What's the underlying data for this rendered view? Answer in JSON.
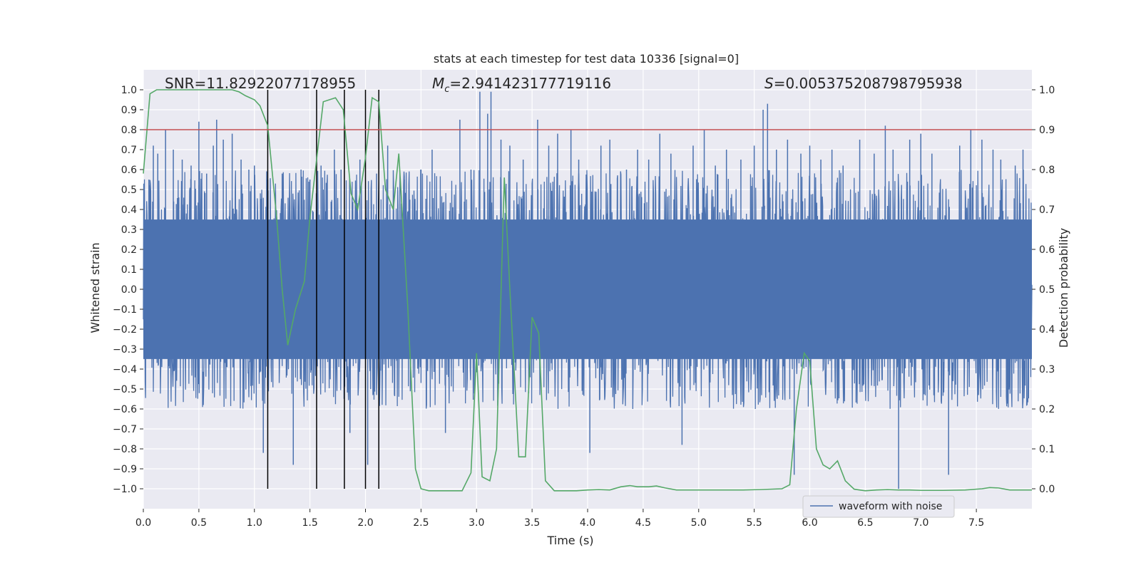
{
  "chart_data": {
    "type": "line",
    "title": "stats at each timestep for test data 10336 [signal=0]",
    "xlabel": "Time (s)",
    "ylabel": "Whitened strain",
    "y2label": "Detection probability",
    "xlim": [
      0,
      8
    ],
    "ylim": [
      -1.1,
      1.1
    ],
    "y2lim": [
      -0.05,
      1.05
    ],
    "xticks": [
      0.0,
      0.5,
      1.0,
      1.5,
      2.0,
      2.5,
      3.0,
      3.5,
      4.0,
      4.5,
      5.0,
      5.5,
      6.0,
      6.5,
      7.0,
      7.5
    ],
    "xtick_labels": [
      "0.0",
      "0.5",
      "1.0",
      "1.5",
      "2.0",
      "2.5",
      "3.0",
      "3.5",
      "4.0",
      "4.5",
      "5.0",
      "5.5",
      "6.0",
      "6.5",
      "7.0",
      "7.5"
    ],
    "yticks": [
      1.0,
      0.9,
      0.8,
      0.7,
      0.6,
      0.5,
      0.4,
      0.3,
      0.2,
      0.1,
      0.0,
      -0.1,
      -0.2,
      -0.3,
      -0.4,
      -0.5,
      -0.6,
      -0.7,
      -0.8,
      -0.9,
      -1.0
    ],
    "ytick_labels": [
      "1.0",
      "0.9",
      "0.8",
      "0.7",
      "0.6",
      "0.5",
      "0.4",
      "0.3",
      "0.2",
      "0.1",
      "0.0",
      "−0.1",
      "−0.2",
      "−0.3",
      "−0.4",
      "−0.5",
      "−0.6",
      "−0.7",
      "−0.8",
      "−0.9",
      "−1.0"
    ],
    "y2ticks": [
      1.0,
      0.9,
      0.8,
      0.7,
      0.6,
      0.5,
      0.4,
      0.3,
      0.2,
      0.1,
      0.0
    ],
    "y2tick_labels": [
      "1.0",
      "0.9",
      "0.8",
      "0.7",
      "0.6",
      "0.5",
      "0.4",
      "0.3",
      "0.2",
      "0.1",
      "0.0"
    ],
    "annotations": {
      "snr": "SNR=11.82922077178955",
      "mc_symbol": "M",
      "mc_sub": "c",
      "mc_value": "=2.941423177719116",
      "s_symbol": "S",
      "s_value": "=0.005375208798795938"
    },
    "threshold": {
      "value": 0.9,
      "axis": "y2",
      "color": "#c44e52"
    },
    "vertical_lines": {
      "x": [
        1.12,
        1.56,
        1.81,
        2.0,
        2.12
      ],
      "ymin": -1.0,
      "ymax": 1.0,
      "color": "#000000"
    },
    "legend": {
      "label": "waveform with noise",
      "placement": "lower-right"
    },
    "waveform": {
      "name": "waveform with noise",
      "color": "#4c72b0",
      "core_amplitude": 0.38,
      "spike_times": [
        0.05,
        0.09,
        0.13,
        0.2,
        0.27,
        0.35,
        0.43,
        0.5,
        0.57,
        0.63,
        0.66,
        0.72,
        0.8,
        0.88,
        0.95,
        1.0,
        1.08,
        1.12,
        1.25,
        1.35,
        1.42,
        1.5,
        1.6,
        1.72,
        1.78,
        1.86,
        1.95,
        2.02,
        2.1,
        2.2,
        2.35,
        2.5,
        2.6,
        2.72,
        2.85,
        2.95,
        3.03,
        3.1,
        3.13,
        3.22,
        3.3,
        3.42,
        3.55,
        3.65,
        3.73,
        3.85,
        3.92,
        4.02,
        4.12,
        4.2,
        4.35,
        4.45,
        4.55,
        4.65,
        4.75,
        4.85,
        4.95,
        5.05,
        5.15,
        5.25,
        5.38,
        5.5,
        5.58,
        5.62,
        5.7,
        5.8,
        5.86,
        5.92,
        6.0,
        6.1,
        6.2,
        6.3,
        6.45,
        6.58,
        6.68,
        6.75,
        6.8,
        6.9,
        7.0,
        7.1,
        7.25,
        7.35,
        7.45,
        7.55,
        7.65,
        7.72,
        7.85,
        7.92
      ],
      "spike_values": [
        0.55,
        0.72,
        0.68,
        0.8,
        0.7,
        0.65,
        0.62,
        0.84,
        0.58,
        0.72,
        0.85,
        0.75,
        0.78,
        0.65,
        0.6,
        0.62,
        -0.82,
        0.55,
        0.58,
        -0.88,
        0.6,
        0.55,
        0.62,
        0.7,
        0.6,
        -0.72,
        0.65,
        -0.88,
        0.58,
        0.72,
        0.55,
        0.6,
        0.7,
        -0.72,
        0.85,
        0.6,
        0.99,
        0.88,
        0.99,
        0.75,
        0.72,
        0.65,
        0.85,
        0.72,
        0.78,
        0.8,
        0.65,
        -0.82,
        0.72,
        0.75,
        0.6,
        0.7,
        0.65,
        0.78,
        0.68,
        -0.78,
        0.72,
        0.8,
        0.62,
        0.7,
        0.65,
        0.72,
        0.9,
        0.93,
        0.7,
        0.75,
        -0.93,
        0.68,
        0.72,
        0.65,
        0.7,
        0.62,
        0.75,
        0.68,
        0.82,
        0.7,
        -1.0,
        0.75,
        0.78,
        0.68,
        -0.93,
        0.72,
        0.8,
        0.75,
        0.7,
        0.65,
        0.62,
        0.7
      ]
    },
    "probability": {
      "name": "Detection probability",
      "color": "#55a868",
      "x": [
        0.0,
        0.06,
        0.12,
        0.2,
        0.3,
        0.4,
        0.5,
        0.6,
        0.7,
        0.8,
        0.86,
        0.92,
        1.0,
        1.05,
        1.12,
        1.2,
        1.25,
        1.3,
        1.37,
        1.45,
        1.5,
        1.57,
        1.62,
        1.73,
        1.8,
        1.87,
        1.93,
        2.0,
        2.06,
        2.12,
        2.18,
        2.25,
        2.3,
        2.38,
        2.45,
        2.5,
        2.57,
        2.7,
        2.87,
        2.95,
        3.0,
        3.05,
        3.12,
        3.18,
        3.25,
        3.3,
        3.38,
        3.44,
        3.5,
        3.56,
        3.62,
        3.7,
        3.8,
        3.9,
        4.0,
        4.1,
        4.2,
        4.3,
        4.38,
        4.45,
        4.55,
        4.62,
        4.7,
        4.8,
        5.0,
        5.2,
        5.4,
        5.55,
        5.75,
        5.82,
        5.88,
        5.95,
        6.0,
        6.06,
        6.12,
        6.18,
        6.25,
        6.32,
        6.4,
        6.5,
        6.6,
        6.7,
        6.8,
        6.9,
        7.0,
        7.2,
        7.4,
        7.55,
        7.62,
        7.7,
        7.8,
        7.9,
        8.0
      ],
      "y": [
        0.79,
        0.99,
        1.0,
        1.0,
        1.0,
        1.0,
        1.0,
        1.0,
        1.0,
        1.0,
        0.995,
        0.985,
        0.975,
        0.96,
        0.91,
        0.68,
        0.5,
        0.36,
        0.45,
        0.52,
        0.68,
        0.85,
        0.97,
        0.98,
        0.95,
        0.74,
        0.7,
        0.83,
        0.98,
        0.97,
        0.75,
        0.7,
        0.84,
        0.46,
        0.05,
        0.0,
        -0.005,
        -0.005,
        -0.005,
        0.04,
        0.34,
        0.03,
        0.02,
        0.1,
        0.78,
        0.5,
        0.08,
        0.08,
        0.43,
        0.39,
        0.02,
        -0.005,
        -0.005,
        -0.005,
        -0.003,
        -0.002,
        -0.003,
        0.005,
        0.008,
        0.005,
        0.005,
        0.007,
        0.002,
        -0.003,
        -0.003,
        -0.003,
        -0.003,
        -0.002,
        0.0,
        0.01,
        0.2,
        0.34,
        0.32,
        0.1,
        0.06,
        0.05,
        0.07,
        0.02,
        -0.001,
        -0.005,
        -0.003,
        -0.002,
        -0.003,
        -0.003,
        -0.004,
        -0.004,
        -0.003,
        0.0,
        0.003,
        0.002,
        -0.003,
        -0.003,
        -0.003
      ]
    }
  }
}
